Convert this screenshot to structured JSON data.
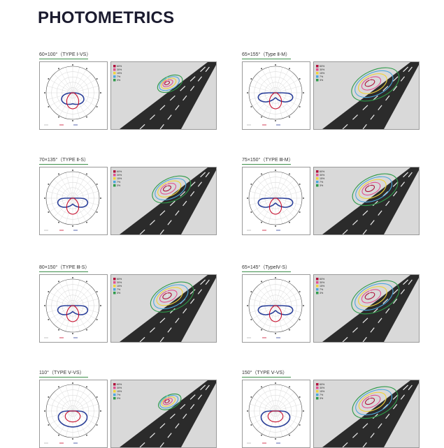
{
  "page": {
    "title": "PHOTOMETRICS"
  },
  "colors": {
    "polar_blue": "#2a3f99",
    "polar_red": "#c8102e",
    "road_asphalt": "#2b2b2b",
    "road_bg": "#d9d9d9",
    "iso_colors": [
      "#b0103a",
      "#e2508f",
      "#f0d23a",
      "#4da7dd",
      "#2e9b4a"
    ],
    "underline_green": "#3d8f4a"
  },
  "legend_labels": [
    "60%",
    "30%",
    "15%",
    "7%",
    "3%"
  ],
  "charts": [
    {
      "label": "60×100°（TYPE Ⅰ-VS）",
      "beam": "narrow",
      "road_scale": 0.55
    },
    {
      "label": "65×155°（Type Ⅱ-M）",
      "beam": "wide",
      "road_scale": 1.05
    },
    {
      "label": "70×135°（TYPE Ⅱ-S）",
      "beam": "mid",
      "road_scale": 0.85
    },
    {
      "label": "75×150°（TYPE Ⅲ-M）",
      "beam": "wide",
      "road_scale": 1.0
    },
    {
      "label": "80×150°（TYPE Ⅲ-S）",
      "beam": "mid",
      "road_scale": 0.95
    },
    {
      "label": "65×145°（TypeⅣ-S）",
      "beam": "wide",
      "road_scale": 1.05
    },
    {
      "label": "110°（TYPE Ⅴ-VS）",
      "beam": "round",
      "road_scale": 0.5
    },
    {
      "label": "150°（TYPE Ⅴ-VS）",
      "beam": "round",
      "road_scale": 1.0
    }
  ]
}
